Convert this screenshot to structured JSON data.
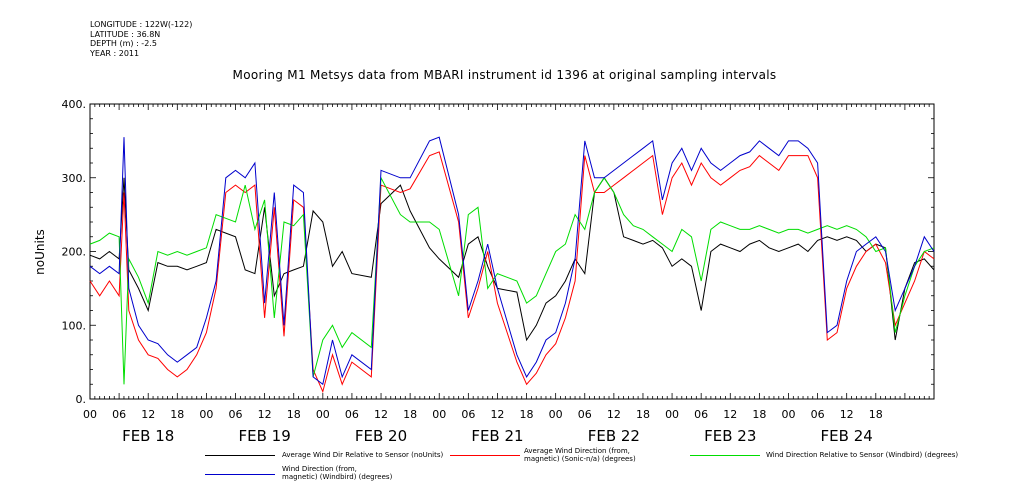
{
  "meta": {
    "longitude": "LONGITUDE : 122W(-122)",
    "latitude": "LATITUDE : 36.8N",
    "depth": "DEPTH (m) : -2.5",
    "year": "YEAR : 2011"
  },
  "chart_data": {
    "type": "line",
    "title": "Mooring M1 Metsys data from MBARI instrument id 1396 at original sampling intervals",
    "ylabel": "noUnits",
    "xlabel": "",
    "ylim": [
      0,
      400
    ],
    "yticks": [
      "0.",
      "100.",
      "200.",
      "300.",
      "400."
    ],
    "xlim_hours": [
      0,
      174
    ],
    "hour_tick_labels": [
      "00",
      "06",
      "12",
      "18",
      "00",
      "06",
      "12",
      "18",
      "00",
      "06",
      "12",
      "18",
      "00",
      "06",
      "12",
      "18",
      "00",
      "06",
      "12",
      "18",
      "00",
      "06",
      "12",
      "18",
      "00",
      "06",
      "12",
      "18"
    ],
    "day_labels": [
      "FEB 18",
      "FEB 19",
      "FEB 20",
      "FEB 21",
      "FEB 22",
      "FEB 23",
      "FEB 24"
    ],
    "grid": false,
    "legend_position": "bottom",
    "series": [
      {
        "name": "Average Wind Dir Relative to Sensor (noUnits)",
        "color": "#000000",
        "x": [
          0,
          2,
          4,
          6,
          7,
          8,
          10,
          12,
          14,
          16,
          18,
          20,
          22,
          24,
          26,
          28,
          30,
          32,
          34,
          36,
          38,
          40,
          42,
          44,
          46,
          48,
          50,
          52,
          54,
          58,
          60,
          64,
          66,
          70,
          72,
          76,
          78,
          80,
          82,
          84,
          88,
          90,
          92,
          94,
          96,
          98,
          100,
          102,
          104,
          106,
          108,
          110,
          112,
          114,
          116,
          118,
          120,
          122,
          124,
          126,
          128,
          130,
          132,
          134,
          136,
          138,
          140,
          142,
          144,
          146,
          148,
          150,
          152,
          154,
          156,
          158,
          160,
          162,
          164,
          166,
          168,
          170,
          172,
          174
        ],
        "y": [
          195,
          190,
          200,
          190,
          300,
          175,
          150,
          120,
          185,
          180,
          180,
          175,
          180,
          185,
          230,
          225,
          220,
          175,
          170,
          260,
          140,
          170,
          175,
          180,
          255,
          240,
          180,
          200,
          170,
          165,
          265,
          290,
          255,
          205,
          190,
          165,
          210,
          220,
          180,
          150,
          145,
          80,
          100,
          130,
          140,
          160,
          190,
          170,
          280,
          300,
          280,
          220,
          215,
          210,
          215,
          205,
          180,
          190,
          180,
          120,
          200,
          210,
          205,
          200,
          210,
          215,
          205,
          200,
          205,
          210,
          200,
          215,
          220,
          215,
          220,
          215,
          200,
          210,
          205,
          80,
          150,
          185,
          190,
          175
        ]
      },
      {
        "name": "Average Wind Direction (from, magnetic) (Sonic-n/a) (degrees)",
        "color": "#ff0000",
        "x": [
          0,
          2,
          4,
          6,
          7,
          8,
          10,
          12,
          14,
          16,
          18,
          20,
          22,
          24,
          26,
          28,
          30,
          32,
          34,
          36,
          38,
          40,
          42,
          44,
          46,
          48,
          50,
          52,
          54,
          58,
          60,
          64,
          66,
          70,
          72,
          76,
          78,
          80,
          82,
          84,
          88,
          90,
          92,
          94,
          96,
          98,
          100,
          102,
          104,
          106,
          108,
          110,
          112,
          114,
          116,
          118,
          120,
          122,
          124,
          126,
          128,
          130,
          132,
          134,
          136,
          138,
          140,
          142,
          144,
          146,
          148,
          150,
          152,
          154,
          156,
          158,
          160,
          162,
          164,
          166,
          168,
          170,
          172,
          174
        ],
        "y": [
          160,
          140,
          160,
          140,
          280,
          120,
          80,
          60,
          55,
          40,
          30,
          40,
          60,
          90,
          150,
          280,
          290,
          280,
          290,
          110,
          260,
          85,
          270,
          260,
          40,
          10,
          60,
          20,
          50,
          30,
          290,
          280,
          285,
          330,
          335,
          240,
          110,
          150,
          200,
          130,
          50,
          20,
          35,
          60,
          75,
          110,
          160,
          330,
          280,
          280,
          290,
          300,
          310,
          320,
          330,
          250,
          300,
          320,
          290,
          320,
          300,
          290,
          300,
          310,
          315,
          330,
          320,
          310,
          330,
          330,
          330,
          300,
          80,
          90,
          150,
          180,
          200,
          210,
          185,
          100,
          130,
          160,
          200,
          190
        ],
        "note": "clustered high-frequency oscillation around FEB 20 (hours 48-56)"
      },
      {
        "name": "Wind Direction Relative to Sensor (Windbird) (degrees)",
        "color": "#00dd00",
        "x": [
          0,
          2,
          4,
          6,
          7,
          8,
          10,
          12,
          14,
          16,
          18,
          20,
          22,
          24,
          26,
          28,
          30,
          32,
          34,
          36,
          38,
          40,
          42,
          44,
          46,
          48,
          50,
          52,
          54,
          58,
          60,
          64,
          66,
          70,
          72,
          76,
          78,
          80,
          82,
          84,
          88,
          90,
          92,
          94,
          96,
          98,
          100,
          102,
          104,
          106,
          108,
          110,
          112,
          114,
          116,
          118,
          120,
          122,
          124,
          126,
          128,
          130,
          132,
          134,
          136,
          138,
          140,
          142,
          144,
          146,
          148,
          150,
          152,
          154,
          156,
          158,
          160,
          162,
          164,
          166,
          168,
          170,
          172,
          174
        ],
        "y": [
          210,
          215,
          225,
          220,
          20,
          190,
          165,
          130,
          200,
          195,
          200,
          195,
          200,
          205,
          250,
          245,
          240,
          290,
          230,
          270,
          110,
          240,
          235,
          250,
          30,
          80,
          100,
          70,
          90,
          70,
          300,
          250,
          240,
          240,
          230,
          140,
          250,
          260,
          150,
          170,
          160,
          130,
          140,
          170,
          200,
          210,
          250,
          230,
          280,
          300,
          280,
          250,
          235,
          230,
          220,
          210,
          200,
          230,
          220,
          160,
          230,
          240,
          235,
          230,
          230,
          235,
          230,
          225,
          230,
          230,
          225,
          230,
          235,
          230,
          235,
          230,
          220,
          200,
          205,
          90,
          140,
          180,
          200,
          205
        ]
      },
      {
        "name": "Wind Direction (from, magnetic) (Windbird) (degrees)",
        "color": "#0000cc",
        "x": [
          0,
          2,
          4,
          6,
          7,
          8,
          10,
          12,
          14,
          16,
          18,
          20,
          22,
          24,
          26,
          28,
          30,
          32,
          34,
          36,
          38,
          40,
          42,
          44,
          46,
          48,
          50,
          52,
          54,
          58,
          60,
          64,
          66,
          70,
          72,
          76,
          78,
          80,
          82,
          84,
          88,
          90,
          92,
          94,
          96,
          98,
          100,
          102,
          104,
          106,
          108,
          110,
          112,
          114,
          116,
          118,
          120,
          122,
          124,
          126,
          128,
          130,
          132,
          134,
          136,
          138,
          140,
          142,
          144,
          146,
          148,
          150,
          152,
          154,
          156,
          158,
          160,
          162,
          164,
          166,
          168,
          170,
          172,
          174
        ],
        "y": [
          180,
          170,
          180,
          170,
          355,
          150,
          100,
          80,
          75,
          60,
          50,
          60,
          70,
          110,
          160,
          300,
          310,
          300,
          320,
          130,
          280,
          100,
          290,
          280,
          30,
          20,
          80,
          30,
          60,
          40,
          310,
          300,
          300,
          350,
          355,
          250,
          120,
          160,
          210,
          150,
          60,
          30,
          50,
          80,
          90,
          130,
          190,
          350,
          300,
          300,
          310,
          320,
          330,
          340,
          350,
          270,
          320,
          340,
          310,
          340,
          320,
          310,
          320,
          330,
          335,
          350,
          340,
          330,
          350,
          350,
          340,
          320,
          90,
          100,
          160,
          200,
          210,
          220,
          200,
          120,
          150,
          180,
          220,
          200
        ]
      }
    ]
  },
  "legend": [
    {
      "label": "Average Wind Dir Relative to Sensor (noUnits)",
      "color": "#000000"
    },
    {
      "label": "Average Wind Direction (from,\n magnetic) (Sonic-n/a) (degrees)",
      "color": "#ff0000"
    },
    {
      "label": "Wind Direction Relative to Sensor (Windbird) (degrees)",
      "color": "#00dd00"
    },
    {
      "label": "Wind Direction (from,\n magnetic) (Windbird) (degrees)",
      "color": "#0000cc"
    }
  ]
}
